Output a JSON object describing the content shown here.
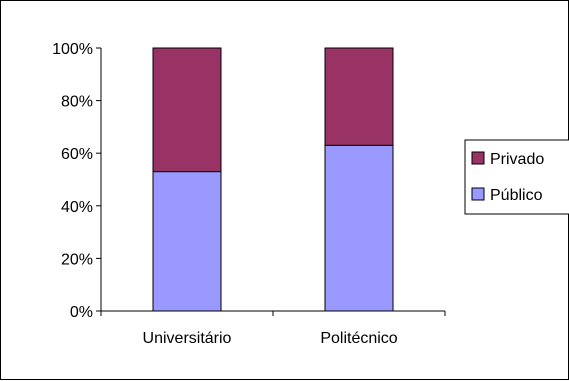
{
  "chart_data": {
    "type": "bar",
    "stacked": true,
    "percent": true,
    "categories": [
      "Universitário",
      "Politécnico"
    ],
    "series": [
      {
        "name": "Público",
        "values": [
          53,
          63
        ],
        "color": "#9999FF"
      },
      {
        "name": "Privado",
        "values": [
          47,
          37
        ],
        "color": "#993366"
      }
    ],
    "ylim": [
      0,
      100
    ],
    "yticks": [
      "0%",
      "20%",
      "40%",
      "60%",
      "80%",
      "100%"
    ],
    "xlabel": "",
    "ylabel": "",
    "grid": false,
    "legend_position": "right",
    "legend_order": [
      "Privado",
      "Público"
    ]
  }
}
